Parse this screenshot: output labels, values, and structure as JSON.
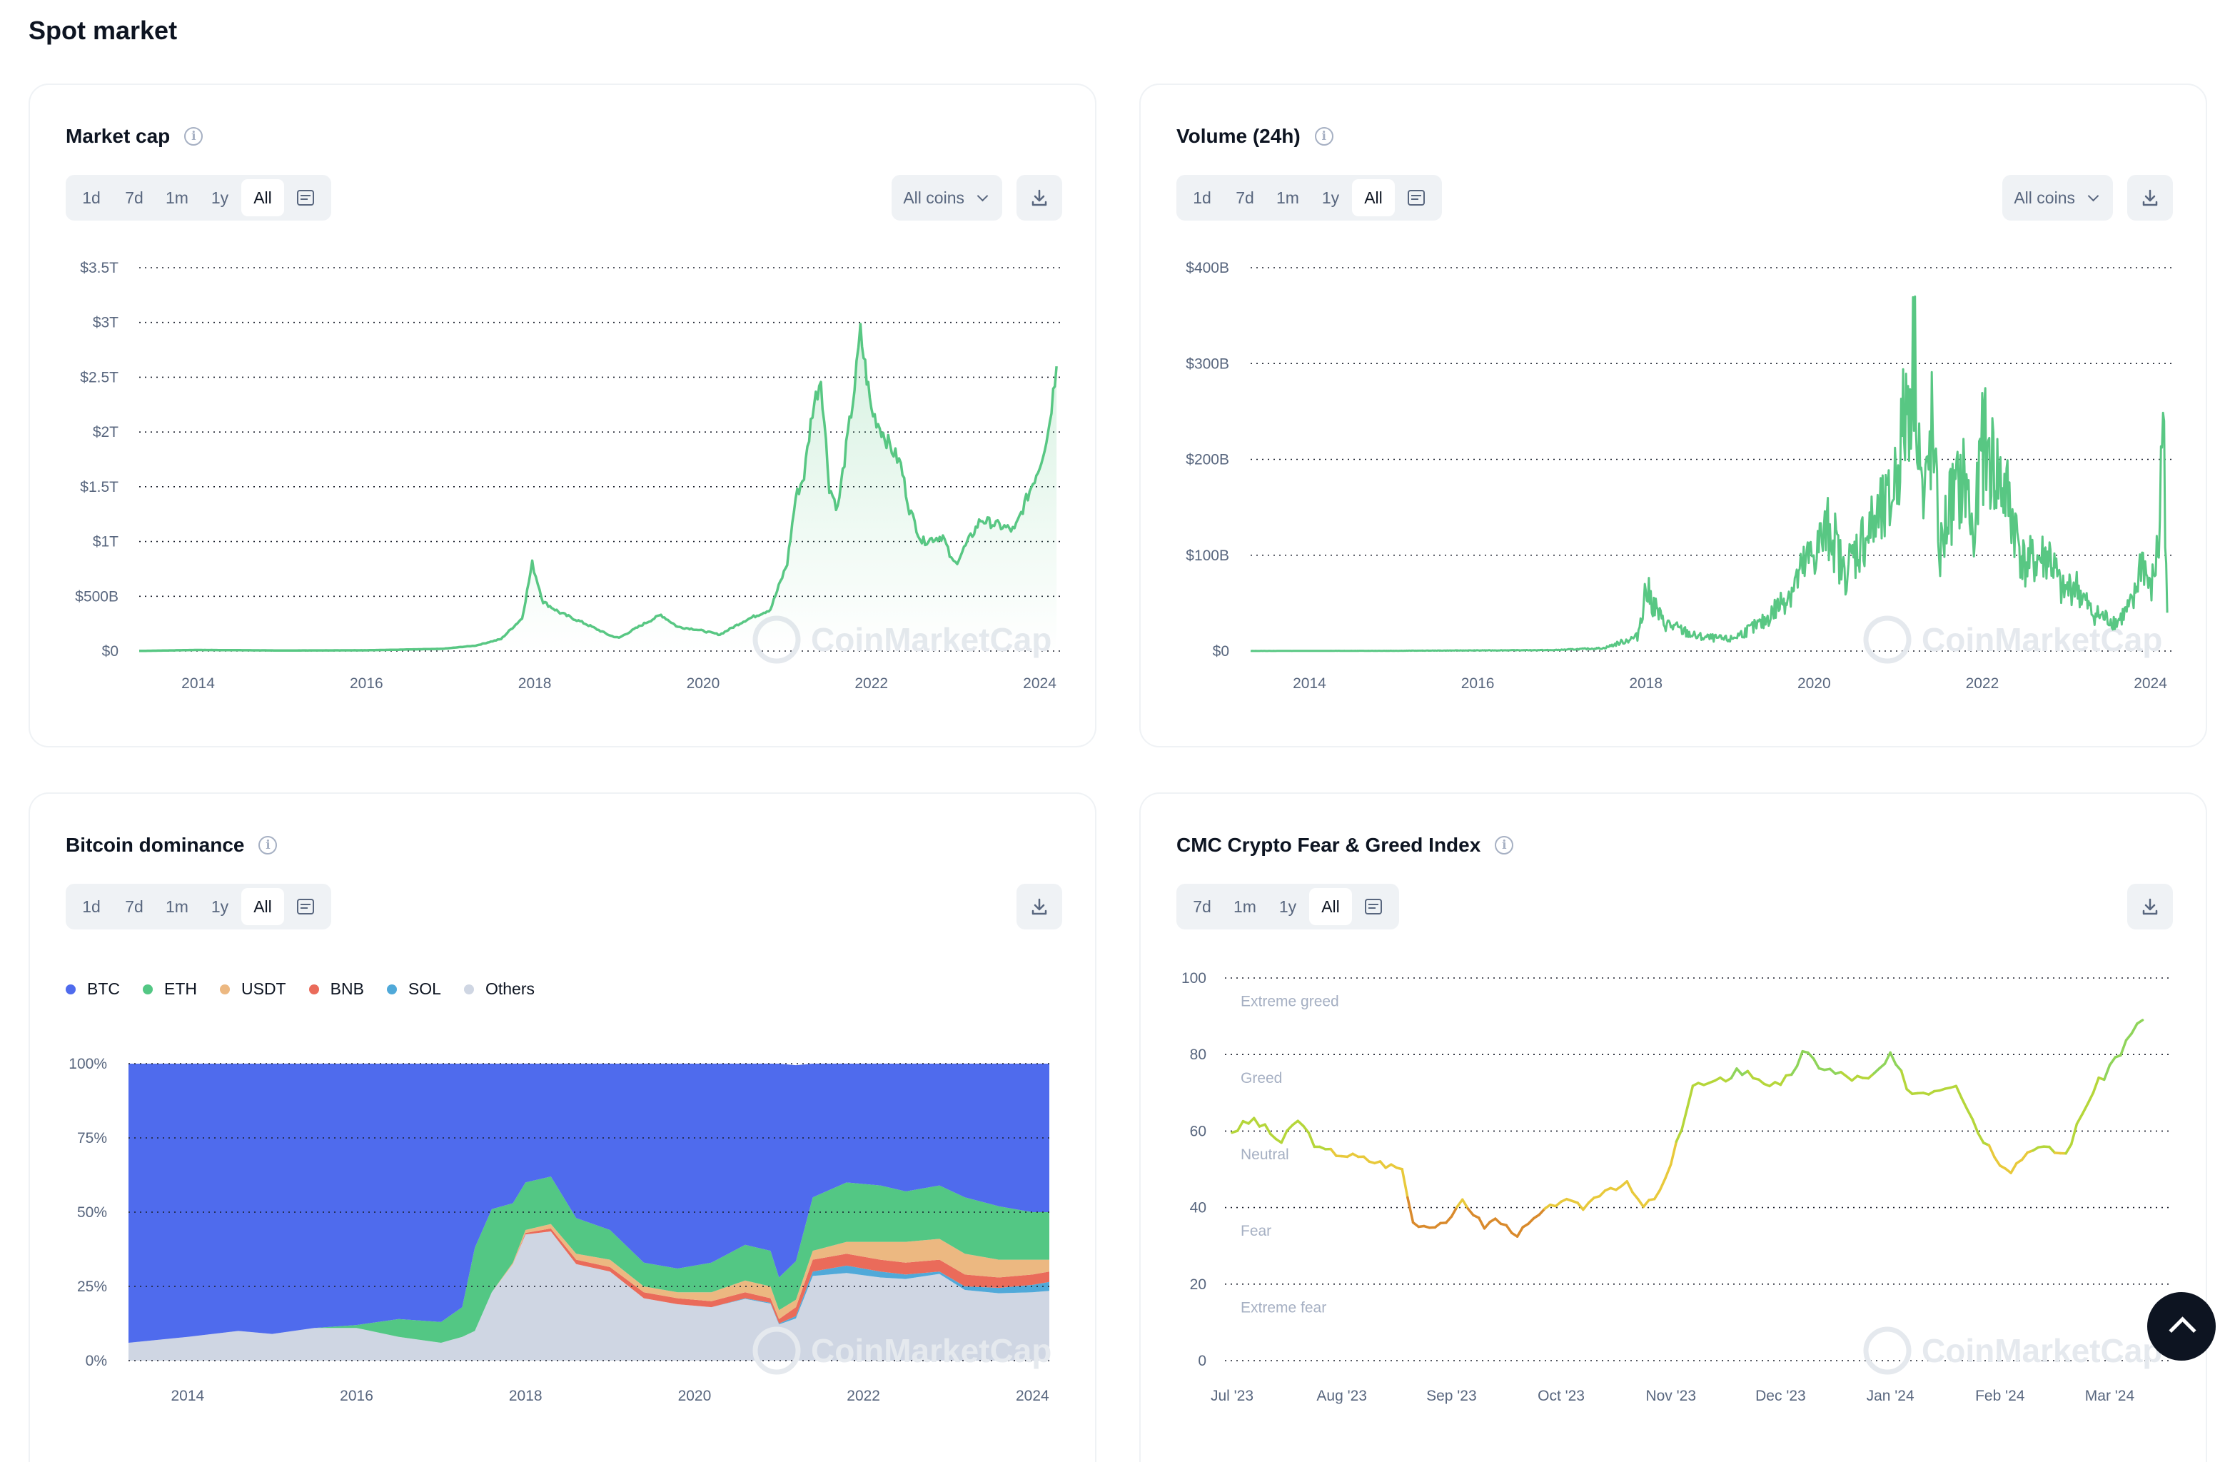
{
  "page_title": "Spot market",
  "colors": {
    "line_green": "#58c783",
    "btc": "#4f6bed",
    "eth": "#53c784",
    "usdt": "#ecb881",
    "bnb": "#ea6b5a",
    "sol": "#50a9d9",
    "others": "#cfd6e3",
    "grid": "#0d1421"
  },
  "icons": {
    "info": "info-icon",
    "calendar": "calendar-icon",
    "download": "download-icon",
    "dropdown": "chevron-down-icon",
    "scroll_top": "chevron-up-icon"
  },
  "watermark": "CoinMarketCap",
  "cards": {
    "market_cap": {
      "title": "Market cap",
      "info_glyph": "i",
      "ranges": [
        "1d",
        "7d",
        "1m",
        "1y",
        "All"
      ],
      "active_range": "All",
      "coin_filter": "All coins"
    },
    "volume": {
      "title": "Volume (24h)",
      "info_glyph": "i",
      "ranges": [
        "1d",
        "7d",
        "1m",
        "1y",
        "All"
      ],
      "active_range": "All",
      "coin_filter": "All coins"
    },
    "dominance": {
      "title": "Bitcoin dominance",
      "info_glyph": "i",
      "ranges": [
        "1d",
        "7d",
        "1m",
        "1y",
        "All"
      ],
      "active_range": "All",
      "legend": [
        "BTC",
        "ETH",
        "USDT",
        "BNB",
        "SOL",
        "Others"
      ]
    },
    "fear_greed": {
      "title": "CMC Crypto Fear & Greed Index",
      "info_glyph": "i",
      "ranges": [
        "7d",
        "1m",
        "1y",
        "All"
      ],
      "active_range": "All"
    }
  },
  "chart_data": [
    {
      "type": "area",
      "title": "Market cap",
      "xlabel": "",
      "ylabel": "",
      "x_ticks": [
        "2014",
        "2016",
        "2018",
        "2020",
        "2022",
        "2024"
      ],
      "y_ticks": [
        "$0",
        "$500B",
        "$1T",
        "$1.5T",
        "$2T",
        "$2.5T",
        "$3T",
        "$3.5T"
      ],
      "ylim": [
        0,
        3.5
      ],
      "y_unit": "trillion USD",
      "x": [
        2013.3,
        2014.0,
        2015.0,
        2016.0,
        2016.9,
        2017.3,
        2017.6,
        2017.85,
        2017.97,
        2018.1,
        2018.3,
        2018.6,
        2018.9,
        2019.0,
        2019.3,
        2019.5,
        2019.7,
        2019.9,
        2020.2,
        2020.5,
        2020.8,
        2021.0,
        2021.1,
        2021.2,
        2021.3,
        2021.4,
        2021.5,
        2021.6,
        2021.8,
        2021.87,
        2022.0,
        2022.2,
        2022.35,
        2022.45,
        2022.6,
        2022.85,
        2022.95,
        2023.0,
        2023.3,
        2023.5,
        2023.7,
        2023.9,
        2024.0,
        2024.1,
        2024.2
      ],
      "series": [
        {
          "values": [
            0.001,
            0.01,
            0.005,
            0.007,
            0.02,
            0.05,
            0.11,
            0.3,
            0.8,
            0.45,
            0.35,
            0.25,
            0.14,
            0.12,
            0.25,
            0.33,
            0.22,
            0.2,
            0.15,
            0.28,
            0.38,
            0.8,
            1.4,
            1.6,
            2.2,
            2.5,
            1.5,
            1.3,
            2.4,
            2.9,
            2.2,
            1.9,
            1.7,
            1.3,
            1.0,
            1.05,
            0.83,
            0.8,
            1.2,
            1.15,
            1.1,
            1.5,
            1.7,
            2.0,
            2.6
          ]
        }
      ]
    },
    {
      "type": "line",
      "title": "Volume (24h)",
      "xlabel": "",
      "ylabel": "",
      "x_ticks": [
        "2014",
        "2016",
        "2018",
        "2020",
        "2022",
        "2024"
      ],
      "y_ticks": [
        "$0",
        "$100B",
        "$200B",
        "$300B",
        "$400B"
      ],
      "ylim": [
        0,
        400
      ],
      "y_unit": "billion USD",
      "x": [
        2013.3,
        2015.0,
        2016.9,
        2017.5,
        2017.9,
        2018.0,
        2018.2,
        2018.6,
        2019.0,
        2019.4,
        2019.7,
        2019.9,
        2020.2,
        2020.35,
        2020.6,
        2020.9,
        2021.0,
        2021.2,
        2021.3,
        2021.4,
        2021.5,
        2021.6,
        2021.8,
        2021.9,
        2022.0,
        2022.3,
        2022.5,
        2022.8,
        2022.95,
        2023.1,
        2023.3,
        2023.6,
        2023.8,
        2023.9,
        2024.0,
        2024.1,
        2024.15,
        2024.2
      ],
      "series": [
        {
          "values": [
            0.1,
            0.3,
            1,
            3,
            15,
            65,
            30,
            15,
            12,
            30,
            60,
            90,
            130,
            80,
            120,
            150,
            200,
            310,
            140,
            230,
            100,
            150,
            180,
            110,
            220,
            160,
            90,
            100,
            60,
            70,
            40,
            30,
            50,
            100,
            60,
            110,
            260,
            40
          ]
        }
      ]
    },
    {
      "type": "area",
      "title": "Bitcoin dominance",
      "xlabel": "",
      "ylabel": "",
      "stacked": true,
      "x_ticks": [
        "2014",
        "2016",
        "2018",
        "2020",
        "2022",
        "2024"
      ],
      "y_ticks": [
        "0%",
        "25%",
        "50%",
        "75%",
        "100%"
      ],
      "ylim": [
        0,
        100
      ],
      "y_unit": "percent",
      "legend_position": "top-left",
      "x": [
        2013.3,
        2014.0,
        2014.6,
        2015.0,
        2015.5,
        2016.0,
        2016.5,
        2017.0,
        2017.25,
        2017.4,
        2017.6,
        2017.85,
        2018.0,
        2018.3,
        2018.6,
        2019.0,
        2019.4,
        2019.8,
        2020.2,
        2020.6,
        2020.9,
        2021.0,
        2021.2,
        2021.4,
        2021.8,
        2022.2,
        2022.5,
        2022.9,
        2023.2,
        2023.6,
        2024.0,
        2024.2
      ],
      "series": [
        {
          "name": "BTC",
          "values": [
            94,
            92,
            90,
            91,
            89,
            88,
            86,
            87,
            82,
            62,
            49,
            47,
            40,
            38,
            52,
            56,
            67,
            69,
            67,
            61,
            63,
            72,
            66,
            45,
            40,
            41,
            43,
            41,
            45,
            48,
            50,
            50
          ]
        },
        {
          "name": "ETH",
          "values": [
            0,
            0,
            0,
            0,
            0,
            1,
            6,
            7,
            10,
            28,
            28,
            20,
            16,
            16,
            12,
            10,
            8,
            8,
            10,
            12,
            12,
            11,
            13,
            18,
            20,
            19,
            17,
            18,
            19,
            18,
            16,
            16
          ]
        },
        {
          "name": "USDT",
          "values": [
            0,
            0,
            0,
            0,
            0,
            0,
            0,
            0,
            0,
            0,
            0,
            0.5,
            1,
            1.5,
            2,
            2.5,
            2,
            2,
            3,
            4,
            4,
            3,
            2.5,
            3,
            4,
            6,
            7,
            7,
            7,
            6,
            5,
            4
          ]
        },
        {
          "name": "BNB",
          "values": [
            0,
            0,
            0,
            0,
            0,
            0,
            0,
            0,
            0,
            0,
            0,
            0,
            0.5,
            1,
            1.5,
            1.5,
            2,
            2,
            2,
            2,
            1.5,
            1.5,
            3,
            4,
            4,
            4,
            4,
            4,
            4,
            3.5,
            3.5,
            3.5
          ]
        },
        {
          "name": "SOL",
          "values": [
            0,
            0,
            0,
            0,
            0,
            0,
            0,
            0,
            0,
            0,
            0,
            0,
            0,
            0,
            0,
            0,
            0,
            0,
            0,
            0.2,
            0.3,
            0.3,
            0.8,
            1.5,
            2.5,
            2,
            1.5,
            0.8,
            1.2,
            1.8,
            2.5,
            3
          ]
        },
        {
          "name": "Others",
          "values": [
            6,
            8,
            10,
            9,
            11,
            11,
            8,
            6,
            8,
            10,
            23,
            32.5,
            42.5,
            43.5,
            32.5,
            30,
            21,
            19,
            18,
            20.8,
            19.2,
            12.2,
            14.2,
            28.5,
            29.5,
            28,
            27.5,
            29.2,
            23.8,
            22.7,
            23,
            23.5
          ]
        }
      ]
    },
    {
      "type": "line",
      "title": "CMC Crypto Fear & Greed Index",
      "xlabel": "",
      "ylabel": "",
      "x_ticks": [
        "Jul '23",
        "Aug '23",
        "Sep '23",
        "Oct '23",
        "Nov '23",
        "Dec '23",
        "Jan '24",
        "Feb '24",
        "Mar '24"
      ],
      "y_ticks": [
        "0",
        "20",
        "40",
        "60",
        "80",
        "100"
      ],
      "ylim": [
        0,
        100
      ],
      "bands": [
        "Extreme greed",
        "Greed",
        "Neutral",
        "Fear",
        "Extreme fear"
      ],
      "x_unit": "months since Jul 1 2023",
      "x": [
        0.0,
        0.2,
        0.45,
        0.6,
        0.8,
        1.0,
        1.3,
        1.55,
        1.65,
        1.8,
        2.0,
        2.1,
        2.3,
        2.4,
        2.6,
        2.8,
        3.0,
        3.2,
        3.4,
        3.6,
        3.75,
        3.9,
        4.0,
        4.2,
        4.4,
        4.6,
        4.8,
        5.0,
        5.2,
        5.5,
        5.8,
        6.0,
        6.2,
        6.4,
        6.6,
        6.8,
        7.0,
        7.1,
        7.3,
        7.6,
        7.8,
        8.0,
        8.3
      ],
      "series": [
        {
          "values": [
            60,
            63,
            57,
            63,
            55,
            54,
            52,
            50,
            36,
            35,
            37,
            42,
            35,
            37,
            33,
            38,
            42,
            40,
            45,
            46,
            40,
            44,
            51,
            72,
            72,
            76,
            74,
            71,
            80,
            75,
            73,
            79,
            70,
            71,
            73,
            60,
            52,
            50,
            56,
            54,
            68,
            77,
            89
          ]
        }
      ]
    }
  ]
}
